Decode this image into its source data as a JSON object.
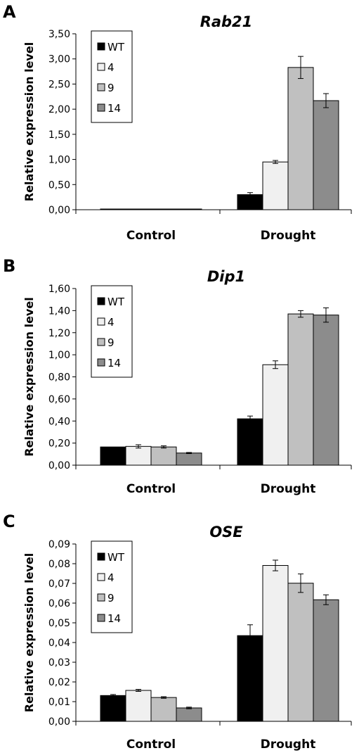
{
  "chart_data": [
    {
      "panel_label": "A",
      "type": "bar",
      "title": "Rab21",
      "ylabel": "Relative expression level",
      "categories": [
        "Control",
        "Drought"
      ],
      "ylim": [
        0,
        3.5
      ],
      "yticks": [
        "0,00",
        "0,50",
        "1,00",
        "1,50",
        "2,00",
        "2,50",
        "3,00",
        "3,50"
      ],
      "legend_position": "top-left",
      "series": [
        {
          "name": "WT",
          "color": "#000000",
          "values": [
            0.01,
            0.3
          ],
          "errors": [
            0,
            0.04
          ]
        },
        {
          "name": "4",
          "color": "#f0f0f0",
          "values": [
            0.01,
            0.95
          ],
          "errors": [
            0,
            0.03
          ]
        },
        {
          "name": "9",
          "color": "#c0c0c0",
          "values": [
            0.01,
            2.83
          ],
          "errors": [
            0,
            0.22
          ]
        },
        {
          "name": "14",
          "color": "#8c8c8c",
          "values": [
            0.01,
            2.17
          ],
          "errors": [
            0,
            0.14
          ]
        }
      ]
    },
    {
      "panel_label": "B",
      "type": "bar",
      "title": "Dip1",
      "ylabel": "Relative expression level",
      "categories": [
        "Control",
        "Drought"
      ],
      "ylim": [
        0,
        1.6
      ],
      "yticks": [
        "0,00",
        "0,20",
        "0,40",
        "0,60",
        "0,80",
        "1,00",
        "1,20",
        "1,40",
        "1,60"
      ],
      "legend_position": "top-left",
      "series": [
        {
          "name": "WT",
          "color": "#000000",
          "values": [
            0.165,
            0.42
          ],
          "errors": [
            0,
            0.025
          ]
        },
        {
          "name": "4",
          "color": "#f0f0f0",
          "values": [
            0.17,
            0.91
          ],
          "errors": [
            0.015,
            0.035
          ]
        },
        {
          "name": "9",
          "color": "#c0c0c0",
          "values": [
            0.165,
            1.37
          ],
          "errors": [
            0.01,
            0.03
          ]
        },
        {
          "name": "14",
          "color": "#8c8c8c",
          "values": [
            0.11,
            1.36
          ],
          "errors": [
            0.005,
            0.065
          ]
        }
      ]
    },
    {
      "panel_label": "C",
      "type": "bar",
      "title": "OSE",
      "ylabel": "Relative expression level",
      "categories": [
        "Control",
        "Drought"
      ],
      "ylim": [
        0,
        0.09
      ],
      "yticks": [
        "0,00",
        "0,01",
        "0,02",
        "0,03",
        "0,04",
        "0,05",
        "0,06",
        "0,07",
        "0,08",
        "0,09"
      ],
      "legend_position": "top-left",
      "series": [
        {
          "name": "WT",
          "color": "#000000",
          "values": [
            0.0131,
            0.0435
          ],
          "errors": [
            0.0005,
            0.0055
          ]
        },
        {
          "name": "4",
          "color": "#f0f0f0",
          "values": [
            0.0157,
            0.0791
          ],
          "errors": [
            0.0005,
            0.0027
          ]
        },
        {
          "name": "9",
          "color": "#c0c0c0",
          "values": [
            0.0121,
            0.0701
          ],
          "errors": [
            0.0004,
            0.0047
          ]
        },
        {
          "name": "14",
          "color": "#8c8c8c",
          "values": [
            0.0068,
            0.0617
          ],
          "errors": [
            0.0004,
            0.0025
          ]
        }
      ]
    }
  ]
}
